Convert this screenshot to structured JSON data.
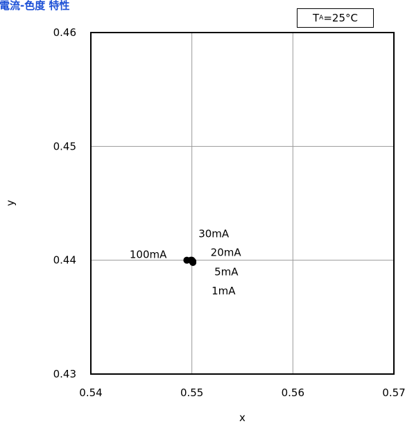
{
  "chart_data": {
    "type": "scatter",
    "title": "順電流-色度 特性",
    "xlabel": "x",
    "ylabel": "y",
    "xlim": [
      0.54,
      0.57
    ],
    "ylim": [
      0.43,
      0.46
    ],
    "xticks": [
      "0.54",
      "0.55",
      "0.56",
      "0.57"
    ],
    "yticks": [
      "0.46",
      "0.45",
      "0.44",
      "0.43"
    ],
    "grid": true,
    "condition": {
      "base": "T",
      "sub": "A",
      "rest": "=25°C"
    },
    "points": [
      {
        "label": "1mA",
        "x": 0.5501,
        "y": 0.4398
      },
      {
        "label": "5mA",
        "x": 0.5501,
        "y": 0.4399
      },
      {
        "label": "20mA",
        "x": 0.55,
        "y": 0.44
      },
      {
        "label": "30mA",
        "x": 0.5499,
        "y": 0.44
      },
      {
        "label": "100mA",
        "x": 0.5495,
        "y": 0.44
      }
    ]
  }
}
